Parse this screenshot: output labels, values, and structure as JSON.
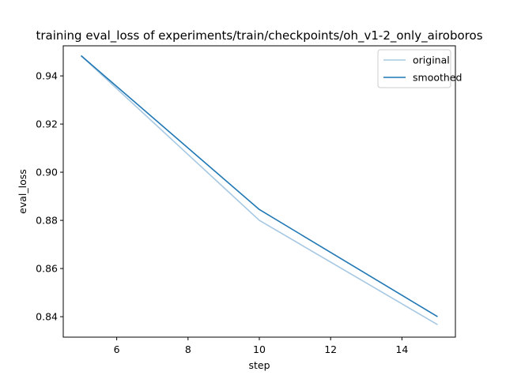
{
  "chart_data": {
    "type": "line",
    "title": "training eval_loss of experiments/train/checkpoints/oh_v1-2_only_airoboros",
    "xlabel": "step",
    "ylabel": "eval_loss",
    "xlim": [
      4.5,
      15.5
    ],
    "ylim": [
      0.8315,
      0.9525
    ],
    "xticks": [
      6,
      8,
      10,
      12,
      14
    ],
    "xtick_labels": [
      "6",
      "8",
      "10",
      "12",
      "14"
    ],
    "yticks": [
      0.84,
      0.86,
      0.88,
      0.9,
      0.92,
      0.94
    ],
    "ytick_labels": [
      "0.84",
      "0.86",
      "0.88",
      "0.90",
      "0.92",
      "0.94"
    ],
    "grid": false,
    "legend_position": "top-right",
    "series": [
      {
        "name": "original",
        "color": "#a6c8e3",
        "x": [
          5,
          10,
          15
        ],
        "y": [
          0.9484,
          0.88,
          0.8367
        ]
      },
      {
        "name": "smoothed",
        "color": "#1f77b4",
        "x": [
          5,
          10,
          15
        ],
        "y": [
          0.9484,
          0.8845,
          0.84
        ]
      }
    ]
  }
}
